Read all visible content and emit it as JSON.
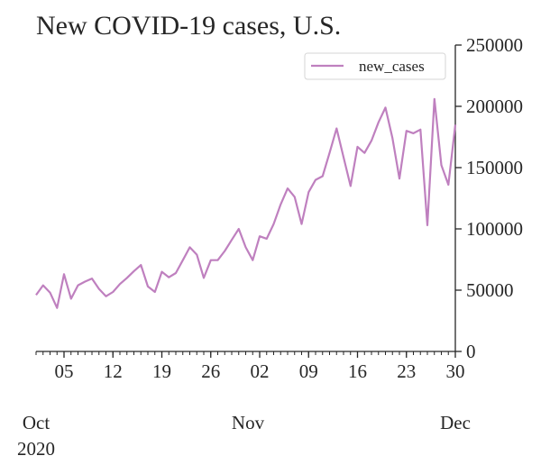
{
  "chart_data": {
    "type": "line",
    "title": "New COVID-19 cases, U.S.",
    "xlabel": "",
    "ylabel": "",
    "x": [
      "2020-10-01",
      "2020-10-02",
      "2020-10-03",
      "2020-10-04",
      "2020-10-05",
      "2020-10-06",
      "2020-10-07",
      "2020-10-08",
      "2020-10-09",
      "2020-10-10",
      "2020-10-11",
      "2020-10-12",
      "2020-10-13",
      "2020-10-14",
      "2020-10-15",
      "2020-10-16",
      "2020-10-17",
      "2020-10-18",
      "2020-10-19",
      "2020-10-20",
      "2020-10-21",
      "2020-10-22",
      "2020-10-23",
      "2020-10-24",
      "2020-10-25",
      "2020-10-26",
      "2020-10-27",
      "2020-10-28",
      "2020-10-29",
      "2020-10-30",
      "2020-10-31",
      "2020-11-01",
      "2020-11-02",
      "2020-11-03",
      "2020-11-04",
      "2020-11-05",
      "2020-11-06",
      "2020-11-07",
      "2020-11-08",
      "2020-11-09",
      "2020-11-10",
      "2020-11-11",
      "2020-11-12",
      "2020-11-13",
      "2020-11-14",
      "2020-11-15",
      "2020-11-16",
      "2020-11-17",
      "2020-11-18",
      "2020-11-19",
      "2020-11-20",
      "2020-11-21",
      "2020-11-22",
      "2020-11-23",
      "2020-11-24",
      "2020-11-25",
      "2020-11-26",
      "2020-11-27",
      "2020-11-28",
      "2020-11-29",
      "2020-11-30"
    ],
    "series": [
      {
        "name": "new_cases",
        "color": "#bf80bf",
        "values": [
          46000,
          54000,
          48000,
          35500,
          63000,
          43000,
          54000,
          57000,
          59500,
          51000,
          45000,
          48500,
          55000,
          60000,
          65500,
          70500,
          53000,
          48500,
          65000,
          60500,
          64000,
          74500,
          85000,
          79000,
          60000,
          74500,
          74500,
          82000,
          91000,
          100000,
          85000,
          74500,
          94000,
          92000,
          104000,
          120000,
          133000,
          126000,
          104000,
          130000,
          140000,
          143000,
          162000,
          182000,
          158500,
          135000,
          167000,
          162000,
          172000,
          187000,
          199000,
          174000,
          141000,
          180000,
          178000,
          181000,
          103000,
          206000,
          152000,
          136000,
          185000
        ]
      }
    ],
    "xlim": [
      "2020-10-01",
      "2020-11-30"
    ],
    "ylim": [
      0,
      250000
    ],
    "yticks": [
      0,
      50000,
      100000,
      150000,
      200000,
      250000
    ],
    "ytick_labels": [
      "0",
      "50000",
      "100000",
      "150000",
      "200000",
      "250000"
    ],
    "xticks_minor": [
      "2020-10-05",
      "2020-10-12",
      "2020-10-19",
      "2020-10-26",
      "2020-11-02",
      "2020-11-09",
      "2020-11-16",
      "2020-11-23",
      "2020-11-30"
    ],
    "xtick_minor_labels": [
      "05",
      "12",
      "19",
      "26",
      "02",
      "09",
      "16",
      "23",
      "30"
    ],
    "xticks_major": [
      "2020-10-01",
      "2020-11-01",
      "2020-12-01"
    ],
    "xtick_major_labels": [
      [
        "Oct",
        "2020"
      ],
      [
        "Nov"
      ],
      [
        "Dec"
      ]
    ],
    "y_axis_position": "right",
    "grid": false,
    "legend": {
      "placement": "top-right",
      "entries": [
        "new_cases"
      ]
    }
  }
}
